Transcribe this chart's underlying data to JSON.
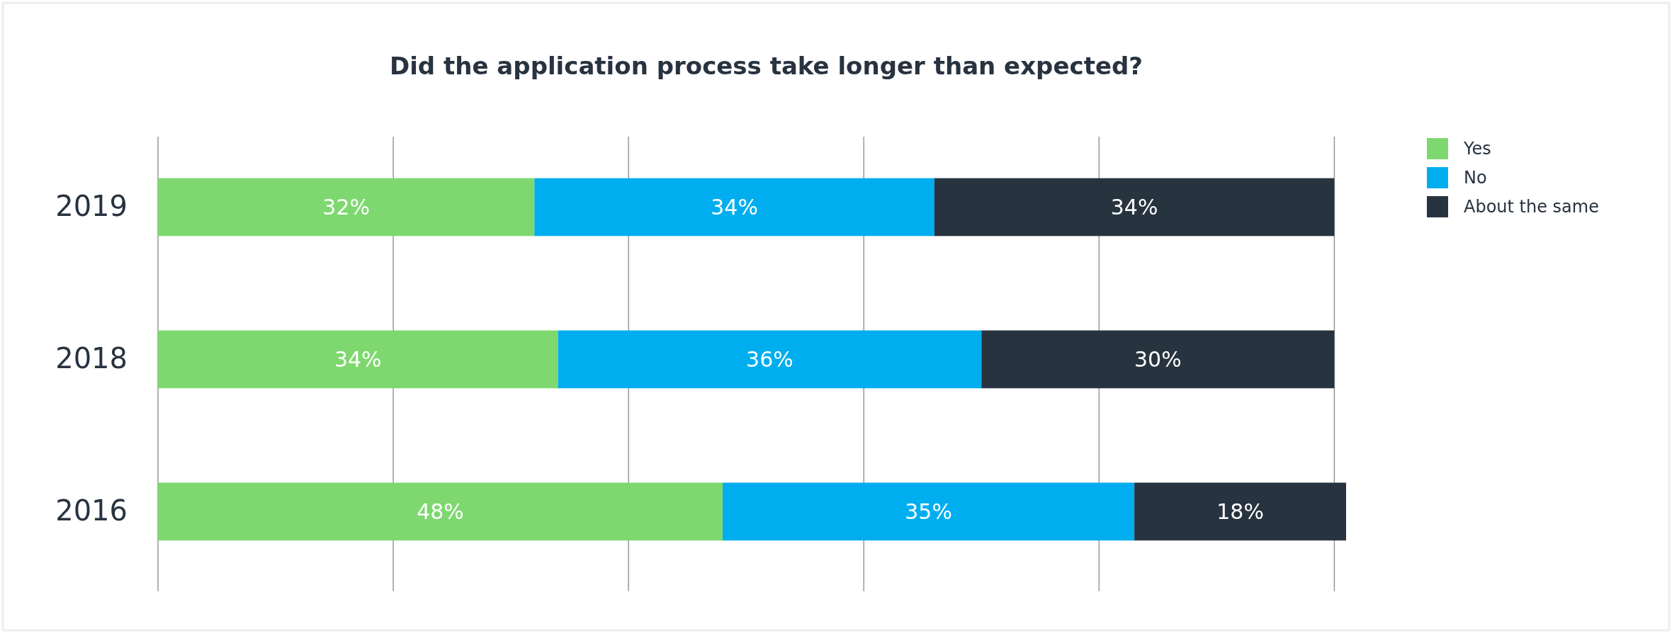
{
  "chart_data": {
    "type": "bar",
    "orientation": "horizontal",
    "stacked": true,
    "title": "Did the application process take longer than expected?",
    "categories": [
      "2019",
      "2018",
      "2016"
    ],
    "series": [
      {
        "name": "Yes",
        "color": "#7ed86f",
        "values": [
          32,
          34,
          48
        ],
        "value_labels": [
          "32%",
          "34%",
          "48%"
        ]
      },
      {
        "name": "No",
        "color": "#00aeef",
        "values": [
          34,
          36,
          35
        ],
        "value_labels": [
          "34%",
          "36%",
          "35%"
        ]
      },
      {
        "name": "About the same",
        "color": "#283340",
        "values": [
          34,
          30,
          18
        ],
        "value_labels": [
          "34%",
          "30%",
          "18%"
        ]
      }
    ],
    "tick_labels": "y",
    "grid": "x",
    "legend": "right"
  }
}
